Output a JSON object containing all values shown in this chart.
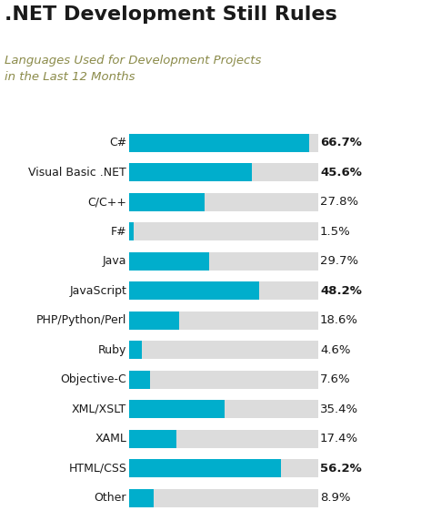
{
  "title": ".NET Development Still Rules",
  "subtitle": "Languages Used for Development Projects\nin the Last 12 Months",
  "categories": [
    "C#",
    "Visual Basic .NET",
    "C/C++",
    "F#",
    "Java",
    "JavaScript",
    "PHP/Python/Perl",
    "Ruby",
    "Objective-C",
    "XML/XSLT",
    "XAML",
    "HTML/CSS",
    "Other"
  ],
  "values": [
    66.7,
    45.6,
    27.8,
    1.5,
    29.7,
    48.2,
    18.6,
    4.6,
    7.6,
    35.4,
    17.4,
    56.2,
    8.9
  ],
  "max_value": 70,
  "bar_color": "#00AECC",
  "bg_bar_color": "#DCDCDC",
  "title_color": "#1a1a1a",
  "subtitle_color": "#8B8B4A",
  "label_color": "#1a1a1a",
  "value_color": "#1a1a1a",
  "background_color": "#FFFFFF",
  "bar_height": 0.62,
  "title_fontsize": 16,
  "subtitle_fontsize": 9.5,
  "label_fontsize": 9,
  "value_fontsize": 9.5
}
